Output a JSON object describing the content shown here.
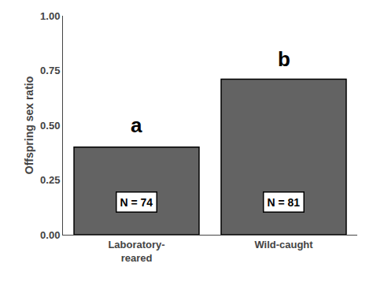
{
  "chart_data": {
    "type": "bar",
    "categories": [
      "Laboratory-\nreared",
      "Wild-caught"
    ],
    "values": [
      0.4,
      0.71
    ],
    "color": "#636363",
    "ylabel": "Offspring sex ratio",
    "ylim": [
      0.0,
      1.0
    ],
    "yticks": [
      {
        "value": 0.0,
        "label": "0.00"
      },
      {
        "value": 0.25,
        "label": "0.25"
      },
      {
        "value": 0.5,
        "label": "0.50"
      },
      {
        "value": 0.75,
        "label": "0.75"
      },
      {
        "value": 1.0,
        "label": "1.00"
      }
    ],
    "annotations": [
      {
        "text": "a",
        "x": "Laboratory-\nreared",
        "y": 0.44
      },
      {
        "text": "b",
        "x": "Wild-caught",
        "y": 0.74
      },
      {
        "text": "N = 74",
        "x": "Laboratory-\nreared",
        "y": 0.15
      },
      {
        "text": "N = 81",
        "x": "Wild-caught",
        "y": 0.15
      }
    ],
    "grid": false
  }
}
